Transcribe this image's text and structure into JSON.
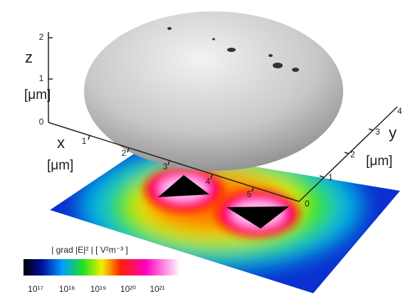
{
  "z_axis": {
    "label": "z",
    "unit": "[μm]",
    "ticks": [
      "0",
      "1",
      "2"
    ]
  },
  "x_axis": {
    "label": "x",
    "unit": "[μm]",
    "ticks": [
      "0",
      "1",
      "2",
      "3",
      "4",
      "5"
    ]
  },
  "y_axis": {
    "label": "y",
    "unit": "[μm]",
    "ticks": [
      "1",
      "2",
      "3",
      "4"
    ]
  },
  "colorbar": {
    "label": "| grad |E|² |   [ V²m⁻³ ]",
    "ticks": [
      "10¹⁷",
      "10¹⁸",
      "10¹⁹",
      "10²⁰",
      "10²¹"
    ]
  }
}
